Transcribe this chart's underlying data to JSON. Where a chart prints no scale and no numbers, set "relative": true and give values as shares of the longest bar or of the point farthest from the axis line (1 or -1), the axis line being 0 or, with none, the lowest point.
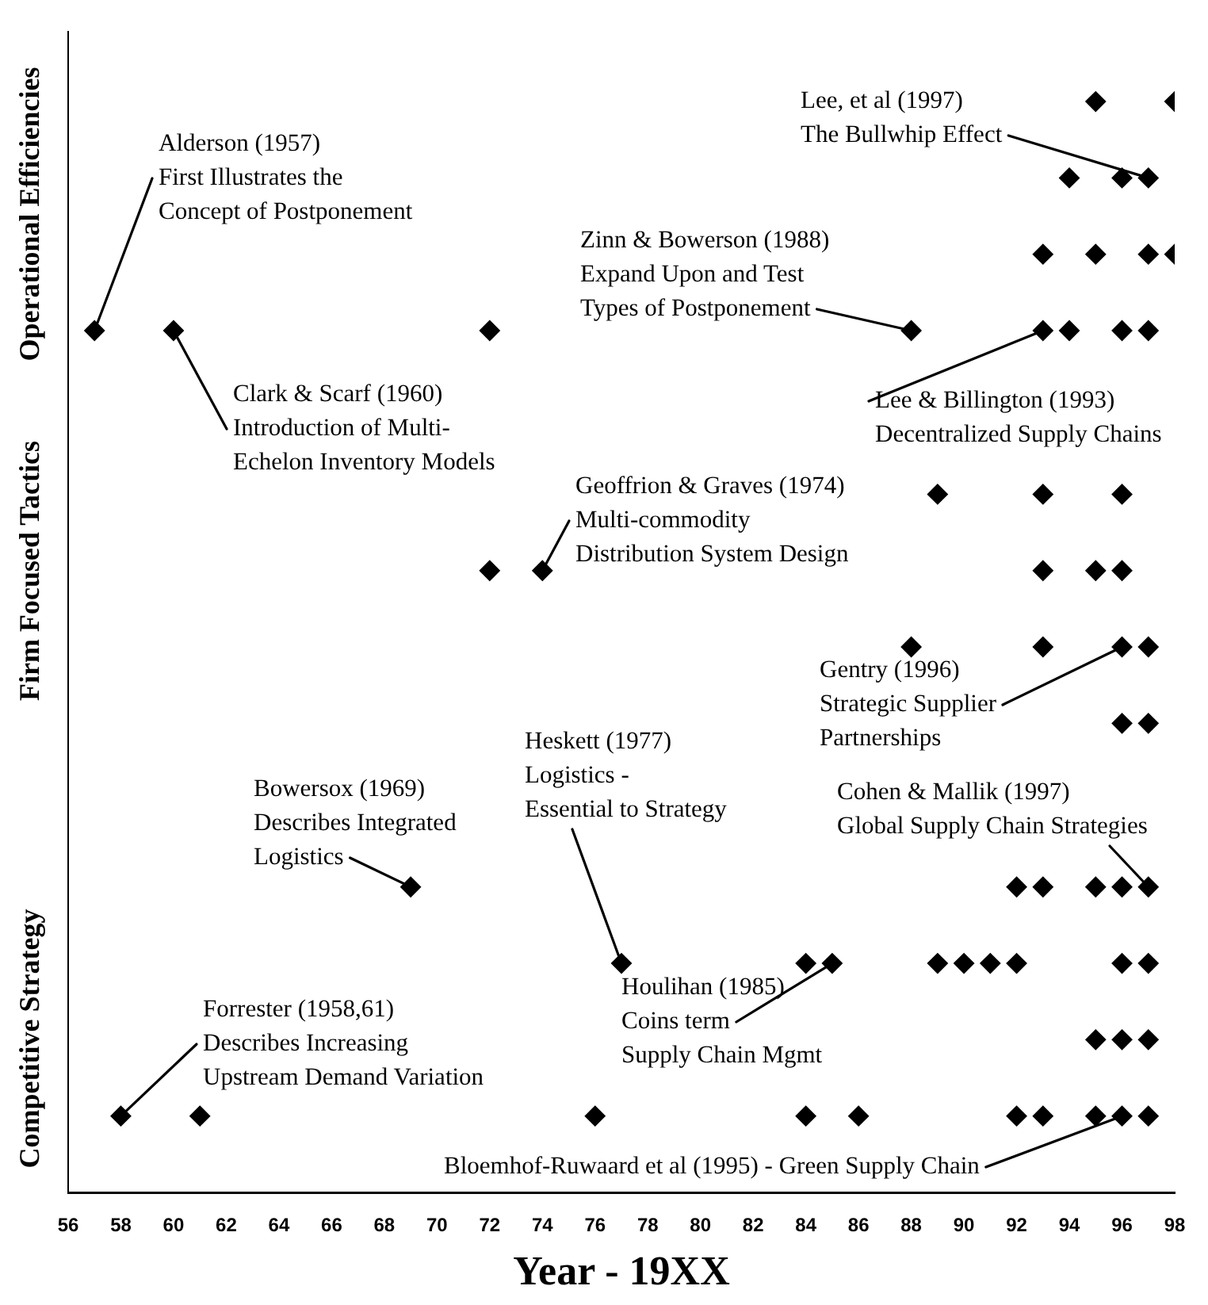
{
  "chart_data": {
    "type": "scatter",
    "xlabel": "Year - 19XX",
    "relative": true,
    "xlim": [
      56,
      98
    ],
    "xticks": [
      56,
      58,
      60,
      62,
      64,
      66,
      68,
      70,
      72,
      74,
      76,
      78,
      80,
      82,
      84,
      86,
      88,
      90,
      92,
      94,
      96,
      98
    ],
    "grid": false,
    "legend": false,
    "marker": "diamond",
    "series": [
      {
        "color": "#000000",
        "x": [
          95,
          98,
          94,
          96,
          97,
          93,
          95,
          97,
          98,
          57,
          60,
          72,
          88,
          93,
          94,
          96,
          97,
          89,
          93,
          96,
          72,
          74,
          93,
          95,
          96,
          88,
          93,
          96,
          97,
          96,
          97,
          69,
          92,
          93,
          95,
          96,
          97,
          77,
          84,
          85,
          89,
          90,
          91,
          92,
          96,
          97,
          95,
          96,
          97,
          58,
          61,
          76,
          84,
          86,
          92,
          93,
          95,
          96,
          97
        ],
        "values": [
          1,
          1,
          0.93,
          0.93,
          0.93,
          0.86,
          0.86,
          0.86,
          0.86,
          0.79,
          0.79,
          0.79,
          0.79,
          0.79,
          0.79,
          0.79,
          0.79,
          0.64,
          0.64,
          0.64,
          0.57,
          0.57,
          0.57,
          0.57,
          0.57,
          0.5,
          0.5,
          0.5,
          0.5,
          0.43,
          0.43,
          0.28,
          0.28,
          0.28,
          0.28,
          0.28,
          0.28,
          0.21,
          0.21,
          0.21,
          0.21,
          0.21,
          0.21,
          0.21,
          0.21,
          0.21,
          0.14,
          0.14,
          0.14,
          0.07,
          0.07,
          0.07,
          0.07,
          0.07,
          0.07,
          0.07,
          0.07,
          0.07,
          0.07
        ]
      }
    ],
    "annotations": [
      {
        "text": "Alderson (1957)\nFirst Illustrates the\nConcept of Postponement",
        "x": 57,
        "y": 0.79
      },
      {
        "text": "Clark & Scarf (1960)\nIntroduction of Multi-\nEchelon Inventory Models",
        "x": 60,
        "y": 0.79
      },
      {
        "text": "Zinn & Bowerson (1988)\nExpand Upon and Test\nTypes of Postponement",
        "x": 88,
        "y": 0.79
      },
      {
        "text": "Lee, et al (1997)\nThe Bullwhip Effect",
        "x": 97,
        "y": 0.93
      },
      {
        "text": "Lee & Billington (1993)\nDecentralized Supply Chains",
        "x": 93,
        "y": 0.79
      },
      {
        "text": "Geoffrion & Graves (1974)\nMulti-commodity\nDistribution System Design",
        "x": 74,
        "y": 0.57
      },
      {
        "text": "Gentry (1996)\nStrategic Supplier\nPartnerships",
        "x": 96,
        "y": 0.5
      },
      {
        "text": "Heskett (1977)\nLogistics -\nEssential to Strategy",
        "x": 77,
        "y": 0.21
      },
      {
        "text": "Bowersox (1969)\nDescribes Integrated\nLogistics",
        "x": 69,
        "y": 0.28
      },
      {
        "text": "Cohen & Mallik (1997)\nGlobal Supply Chain Strategies",
        "x": 97,
        "y": 0.28
      },
      {
        "text": "Houlihan (1985)\nCoins term\nSupply Chain Mgmt",
        "x": 85,
        "y": 0.21
      },
      {
        "text": "Forrester (1958,61)\nDescribes Increasing\nUpstream Demand Variation",
        "x": 58,
        "y": 0.07
      },
      {
        "text": "Bloemhof-Ruwaard et al (1995) - Green Supply Chain",
        "x": 96,
        "y": 0.07
      },
      "Competitive Strategy",
      "Firm Focused Tactics",
      "Operational Efficiencies"
    ]
  }
}
